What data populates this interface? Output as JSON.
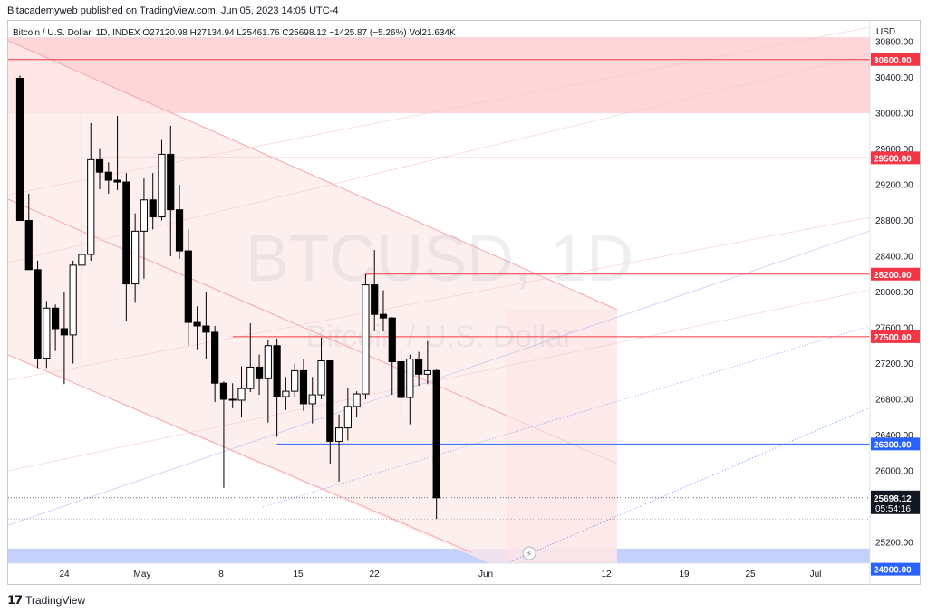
{
  "header": {
    "credit": "Bitacademyweb published on TradingView.com, Jun 05, 2023 14:05 UTC-4"
  },
  "legend": {
    "ohlc": "Bitcoin / U.S. Dollar, 1D, INDEX O27120.98 H27134.94 L25461.76 C25698.12 −1425.87 (−5.26%) Vol21.634K",
    "currency": "USD"
  },
  "watermark": {
    "symbol": "BTCUSD, 1D",
    "name": "Bitcoin / U.S. Dollar"
  },
  "footer": {
    "logo_mark": "𝟭𝟳",
    "brand": "TradingView"
  },
  "colors": {
    "red_line": "#f23645",
    "blue_line": "#2962ff",
    "red_zone": "#fdd6d9",
    "blue_zone": "#c5d0fb",
    "channel_fill": "#fde9ea",
    "candle_up": "#ffffff",
    "candle_down": "#000000"
  },
  "chart_data": {
    "type": "candlestick",
    "title": "Bitcoin / U.S. Dollar, 1D, INDEX",
    "ylim": [
      24900,
      30850
    ],
    "y_ticks": [
      "30800.00",
      "30400.00",
      "30000.00",
      "29600.00",
      "29200.00",
      "28800.00",
      "28400.00",
      "28000.00",
      "27600.00",
      "27200.00",
      "26800.00",
      "26400.00",
      "26000.00",
      "25200.00"
    ],
    "x_ticks": [
      "24",
      "May",
      "8",
      "15",
      "22",
      "Jun",
      "12",
      "19",
      "25",
      "Jul"
    ],
    "horizontal_levels": [
      {
        "label": "30600.00",
        "value": 30600,
        "color": "red"
      },
      {
        "label": "29500.00",
        "value": 29500,
        "color": "red"
      },
      {
        "label": "28200.00",
        "value": 28200,
        "color": "red"
      },
      {
        "label": "27500.00",
        "value": 27500,
        "color": "red"
      },
      {
        "label": "26300.00",
        "value": 26300,
        "color": "blue"
      },
      {
        "label": "24900.00",
        "value": 24900,
        "color": "blue"
      }
    ],
    "last_price": {
      "label": "25698.12",
      "countdown": "05:54:16",
      "value": 25698.12
    },
    "zones": [
      {
        "kind": "resistance",
        "from": 30000,
        "to": 30850
      },
      {
        "kind": "support",
        "from": 24900,
        "to": 25130
      }
    ],
    "candles": [
      {
        "date": "Apr 19",
        "o": 30390,
        "h": 30420,
        "l": 28800,
        "c": 28800
      },
      {
        "date": "Apr 20",
        "o": 28800,
        "h": 29100,
        "l": 28250,
        "c": 28250
      },
      {
        "date": "Apr 21",
        "o": 28250,
        "h": 28350,
        "l": 27150,
        "c": 27260
      },
      {
        "date": "Apr 22",
        "o": 27260,
        "h": 27900,
        "l": 27150,
        "c": 27820
      },
      {
        "date": "Apr 23",
        "o": 27820,
        "h": 27860,
        "l": 27340,
        "c": 27590
      },
      {
        "date": "Apr 24",
        "o": 27590,
        "h": 28000,
        "l": 26970,
        "c": 27520
      },
      {
        "date": "Apr 25",
        "o": 27520,
        "h": 28350,
        "l": 27200,
        "c": 28300
      },
      {
        "date": "Apr 26",
        "o": 28300,
        "h": 30030,
        "l": 27250,
        "c": 28420
      },
      {
        "date": "Apr 27",
        "o": 28420,
        "h": 29890,
        "l": 28350,
        "c": 29480
      },
      {
        "date": "Apr 28",
        "o": 29480,
        "h": 29600,
        "l": 29150,
        "c": 29340
      },
      {
        "date": "Apr 29",
        "o": 29340,
        "h": 29450,
        "l": 29100,
        "c": 29250
      },
      {
        "date": "Apr 30",
        "o": 29250,
        "h": 29970,
        "l": 29140,
        "c": 29230
      },
      {
        "date": "May 1",
        "o": 29230,
        "h": 29330,
        "l": 27680,
        "c": 28090
      },
      {
        "date": "May 2",
        "o": 28090,
        "h": 28880,
        "l": 27880,
        "c": 28680
      },
      {
        "date": "May 3",
        "o": 28680,
        "h": 29270,
        "l": 28150,
        "c": 29030
      },
      {
        "date": "May 4",
        "o": 29030,
        "h": 29330,
        "l": 28700,
        "c": 28840
      },
      {
        "date": "May 5",
        "o": 28840,
        "h": 29700,
        "l": 28800,
        "c": 29540
      },
      {
        "date": "May 6",
        "o": 29540,
        "h": 29860,
        "l": 28400,
        "c": 28920
      },
      {
        "date": "May 7",
        "o": 28920,
        "h": 29200,
        "l": 28370,
        "c": 28460
      },
      {
        "date": "May 8",
        "o": 28460,
        "h": 28700,
        "l": 27400,
        "c": 27660
      },
      {
        "date": "May 9",
        "o": 27660,
        "h": 27840,
        "l": 27360,
        "c": 27620
      },
      {
        "date": "May 10",
        "o": 27620,
        "h": 28000,
        "l": 27250,
        "c": 27550
      },
      {
        "date": "May 11",
        "o": 27550,
        "h": 27620,
        "l": 26770,
        "c": 26980
      },
      {
        "date": "May 12",
        "o": 26980,
        "h": 27000,
        "l": 25810,
        "c": 26800
      },
      {
        "date": "May 13",
        "o": 26800,
        "h": 26980,
        "l": 26700,
        "c": 26790
      },
      {
        "date": "May 14",
        "o": 26790,
        "h": 27170,
        "l": 26600,
        "c": 26920
      },
      {
        "date": "May 15",
        "o": 26920,
        "h": 27650,
        "l": 26880,
        "c": 27160
      },
      {
        "date": "May 16",
        "o": 27160,
        "h": 27300,
        "l": 26850,
        "c": 27030
      },
      {
        "date": "May 17",
        "o": 27030,
        "h": 27470,
        "l": 26540,
        "c": 27400
      },
      {
        "date": "May 18",
        "o": 27400,
        "h": 27480,
        "l": 26380,
        "c": 26830
      },
      {
        "date": "May 19",
        "o": 26830,
        "h": 27050,
        "l": 26680,
        "c": 26890
      },
      {
        "date": "May 20",
        "o": 26890,
        "h": 27200,
        "l": 26830,
        "c": 27120
      },
      {
        "date": "May 21",
        "o": 27120,
        "h": 27250,
        "l": 26670,
        "c": 26750
      },
      {
        "date": "May 22",
        "o": 26750,
        "h": 27050,
        "l": 26530,
        "c": 26850
      },
      {
        "date": "May 23",
        "o": 26850,
        "h": 27490,
        "l": 26800,
        "c": 27230
      },
      {
        "date": "May 24",
        "o": 27230,
        "h": 27230,
        "l": 26080,
        "c": 26330
      },
      {
        "date": "May 25",
        "o": 26330,
        "h": 26630,
        "l": 25880,
        "c": 26480
      },
      {
        "date": "May 26",
        "o": 26480,
        "h": 26930,
        "l": 26340,
        "c": 26720
      },
      {
        "date": "May 27",
        "o": 26720,
        "h": 26890,
        "l": 26600,
        "c": 26860
      },
      {
        "date": "May 28",
        "o": 26860,
        "h": 28200,
        "l": 26800,
        "c": 28080
      },
      {
        "date": "May 29",
        "o": 28080,
        "h": 28470,
        "l": 27560,
        "c": 27750
      },
      {
        "date": "May 30",
        "o": 27750,
        "h": 28020,
        "l": 27560,
        "c": 27710
      },
      {
        "date": "May 31",
        "o": 27710,
        "h": 27720,
        "l": 26850,
        "c": 27220
      },
      {
        "date": "Jun 1",
        "o": 27220,
        "h": 27350,
        "l": 26620,
        "c": 26820
      },
      {
        "date": "Jun 2",
        "o": 26820,
        "h": 27300,
        "l": 26520,
        "c": 27250
      },
      {
        "date": "Jun 3",
        "o": 27250,
        "h": 27330,
        "l": 26950,
        "c": 27080
      },
      {
        "date": "Jun 4",
        "o": 27080,
        "h": 27450,
        "l": 26970,
        "c": 27120
      },
      {
        "date": "Jun 5",
        "o": 27120.98,
        "h": 27134.94,
        "l": 25461.76,
        "c": 25698.12
      }
    ]
  }
}
